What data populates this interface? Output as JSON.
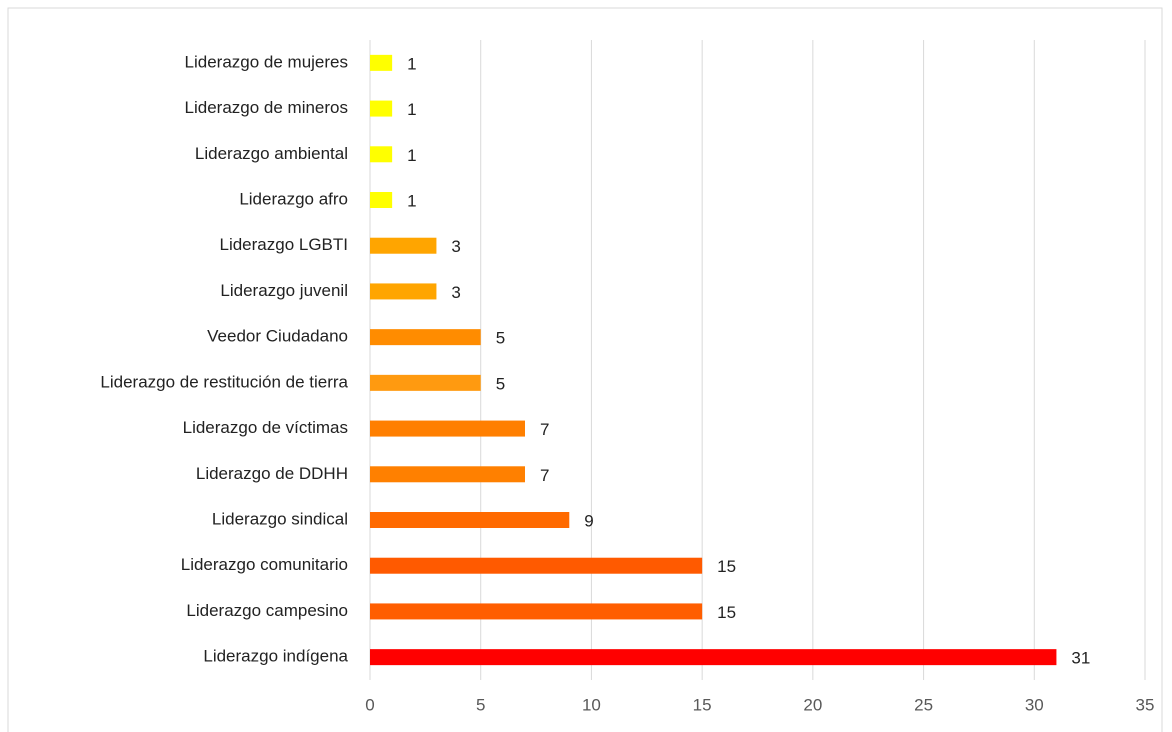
{
  "chart_data": {
    "type": "bar",
    "orientation": "horizontal",
    "categories": [
      "Liderazgo de mujeres",
      "Liderazgo de mineros",
      "Liderazgo ambiental",
      "Liderazgo afro",
      "Liderazgo LGBTI",
      "Liderazgo juvenil",
      "Veedor Ciudadano",
      "Liderazgo de restitución de tierra",
      "Liderazgo de víctimas",
      "Liderazgo de DDHH",
      "Liderazgo sindical",
      "Liderazgo comunitario",
      "Liderazgo campesino",
      "Liderazgo indígena"
    ],
    "values": [
      1,
      1,
      1,
      1,
      3,
      3,
      5,
      5,
      7,
      7,
      9,
      15,
      15,
      31
    ],
    "colors": [
      "#ffff00",
      "#ffff00",
      "#ffff00",
      "#ffff00",
      "#ffa500",
      "#ffa500",
      "#ff8c00",
      "#ff9a10",
      "#ff7f00",
      "#ff8000",
      "#ff6a00",
      "#ff5a00",
      "#ff5e00",
      "#ff0000"
    ],
    "xlim": [
      0,
      35
    ],
    "xticks": [
      0,
      5,
      10,
      15,
      20,
      25,
      30,
      35
    ],
    "grid": true
  }
}
